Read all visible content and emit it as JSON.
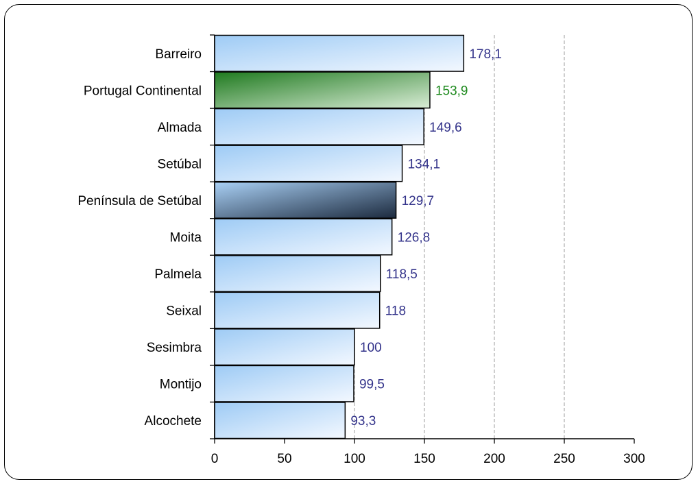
{
  "chart_data": {
    "type": "bar",
    "orientation": "horizontal",
    "categories": [
      "Barreiro",
      "Portugal Continental",
      "Almada",
      "Setúbal",
      "Península de Setúbal",
      "Moita",
      "Palmela",
      "Seixal",
      "Sesimbra",
      "Montijo",
      "Alcochete"
    ],
    "values": [
      178.1,
      153.9,
      149.6,
      134.1,
      129.7,
      126.8,
      118.5,
      118,
      100,
      99.5,
      93.3
    ],
    "value_labels": [
      "178,1",
      "153,9",
      "149,6",
      "134,1",
      "129,7",
      "126,8",
      "118,5",
      "118",
      "100",
      "99,5",
      "93,3"
    ],
    "highlight": {
      "Portugal Continental": "green",
      "Península de Setúbal": "dark-blue"
    },
    "title": "",
    "xlabel": "",
    "ylabel": "",
    "xlim": [
      0,
      300
    ],
    "x_ticks": [
      0,
      50,
      100,
      150,
      200,
      250,
      300
    ],
    "grid": "vertical-dashed",
    "legend": "none",
    "colors": {
      "bar_default_start": "#9ecbf5",
      "bar_default_end": "#f3f8ff",
      "bar_green_start": "#1f7a1f",
      "bar_green_end": "#d9ecd6",
      "bar_dark_start": "#a9d0f5",
      "bar_dark_end": "#1c2a3e",
      "label_default": "#33338a",
      "label_green": "#1e8a1e",
      "grid": "#b3b3b3",
      "axis": "#000000"
    }
  }
}
